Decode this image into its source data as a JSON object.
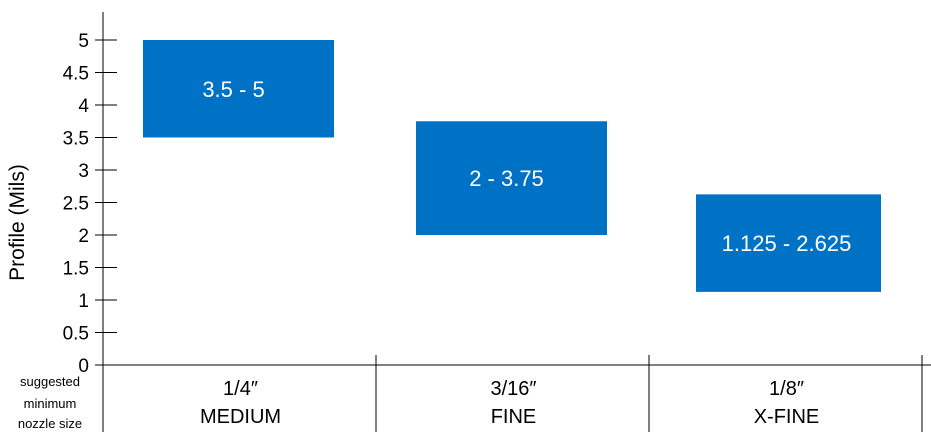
{
  "chart_data": {
    "type": "bar",
    "subtype": "floating-range",
    "ylabel": "Profile (Mils)",
    "ylim": [
      0,
      5
    ],
    "yticks": [
      0,
      0.5,
      1,
      1.5,
      2,
      2.5,
      3,
      3.5,
      4,
      4.5,
      5
    ],
    "grid": false,
    "categories": [
      {
        "size": "1/4″",
        "grade": "MEDIUM"
      },
      {
        "size": "3/16″",
        "grade": "FINE"
      },
      {
        "size": "1/8″",
        "grade": "X-FINE"
      }
    ],
    "ranges": [
      {
        "low": 3.5,
        "high": 5,
        "label": "3.5 - 5"
      },
      {
        "low": 2,
        "high": 3.75,
        "label": "2 - 3.75"
      },
      {
        "low": 1.125,
        "high": 2.625,
        "label": "1.125  - 2.625"
      }
    ],
    "bar_color": "#0072c6",
    "x_note": [
      "suggested",
      "minimum",
      "nozzle size"
    ]
  }
}
